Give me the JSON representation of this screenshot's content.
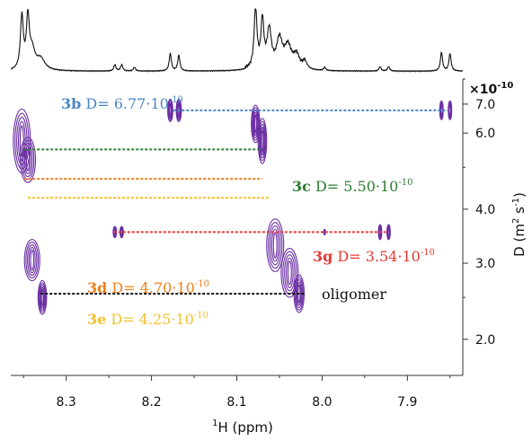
{
  "chart_data": {
    "type": "scatter",
    "title": "",
    "xlabel": "1H (ppm)",
    "xlabel_sup": "1",
    "xlabel_main": "H (ppm)",
    "ylabel": "D (m2 s-1)",
    "ylabel_parts": {
      "base": "D (m",
      "sup1": "2",
      "mid": "s",
      "sup2": "-1",
      "end": ")"
    },
    "y_multiplier": "×10",
    "y_multiplier_exp": "-10",
    "xlim": [
      8.365,
      7.835
    ],
    "x_reversed": true,
    "ylim": [
      1.65,
      8.0
    ],
    "y_scale": "log",
    "x_ticks": [
      "8.3",
      "8.2",
      "8.1",
      "8.0",
      "7.9"
    ],
    "x_tick_values": [
      8.3,
      8.2,
      8.1,
      8.0,
      7.9
    ],
    "y_ticks": [
      "7.0",
      "6.0",
      "4.0",
      "3.0",
      "2.0"
    ],
    "y_tick_values": [
      7.0,
      6.0,
      4.0,
      3.0,
      2.0
    ],
    "grid": false,
    "series": [
      {
        "name": "3b",
        "label_prefix": "3b",
        "label_text": " D= 6.77·10",
        "label_exp": "-10",
        "color": "#4a86c6",
        "D": 6.77,
        "x_from": 8.175,
        "x_to": 7.853
      },
      {
        "name": "3c",
        "label_prefix": "3c",
        "label_text": " D= 5.50·10",
        "label_exp": "-10",
        "color": "#2e7d32",
        "D": 5.5,
        "x_from": 8.35,
        "x_to": 8.072
      },
      {
        "name": "3d",
        "label_prefix": "3d",
        "label_text": " D= 4.70·10",
        "label_exp": "-10",
        "color": "#f07f1a",
        "D": 4.7,
        "x_from": 8.35,
        "x_to": 8.07
      },
      {
        "name": "3e",
        "label_prefix": "3e",
        "label_text": " D= 4.25·10",
        "label_exp": "-10",
        "color": "#f2c12e",
        "D": 4.25,
        "x_from": 8.345,
        "x_to": 8.062
      },
      {
        "name": "3g",
        "label_prefix": "3g",
        "label_text": " D= 3.54·10",
        "label_exp": "-10",
        "color": "#e53935",
        "D": 3.54,
        "x_from": 8.244,
        "x_to": 7.925
      },
      {
        "name": "oligomer",
        "label_text": "oligomer",
        "color": "#111111",
        "D": 2.55,
        "x_from": 8.33,
        "x_to": 8.02
      }
    ],
    "peaks": [
      {
        "x": 8.352,
        "D": 5.75,
        "w": 0.01,
        "h": 0.17
      },
      {
        "x": 8.345,
        "D": 5.2,
        "w": 0.009,
        "h": 0.12
      },
      {
        "x": 8.34,
        "D": 3.05,
        "w": 0.009,
        "h": 0.11
      },
      {
        "x": 8.328,
        "D": 2.5,
        "w": 0.005,
        "h": 0.09
      },
      {
        "x": 8.243,
        "D": 3.54,
        "w": 0.002,
        "h": 0.03
      },
      {
        "x": 8.235,
        "D": 3.54,
        "w": 0.002,
        "h": 0.03
      },
      {
        "x": 8.178,
        "D": 6.77,
        "w": 0.003,
        "h": 0.06
      },
      {
        "x": 8.168,
        "D": 6.77,
        "w": 0.003,
        "h": 0.06
      },
      {
        "x": 8.078,
        "D": 6.3,
        "w": 0.005,
        "h": 0.1
      },
      {
        "x": 8.07,
        "D": 5.75,
        "w": 0.005,
        "h": 0.12
      },
      {
        "x": 8.055,
        "D": 3.3,
        "w": 0.01,
        "h": 0.14
      },
      {
        "x": 8.038,
        "D": 2.85,
        "w": 0.01,
        "h": 0.13
      },
      {
        "x": 8.027,
        "D": 2.55,
        "w": 0.006,
        "h": 0.1
      },
      {
        "x": 7.997,
        "D": 3.54,
        "w": 0.001,
        "h": 0.015
      },
      {
        "x": 7.932,
        "D": 3.54,
        "w": 0.002,
        "h": 0.04
      },
      {
        "x": 7.922,
        "D": 3.54,
        "w": 0.002,
        "h": 0.04
      },
      {
        "x": 7.86,
        "D": 6.77,
        "w": 0.002,
        "h": 0.05
      },
      {
        "x": 7.85,
        "D": 6.77,
        "w": 0.002,
        "h": 0.05
      }
    ],
    "spectrum": [
      {
        "x": 8.352,
        "i": 0.85,
        "w": 0.002
      },
      {
        "x": 8.345,
        "i": 0.8,
        "w": 0.002
      },
      {
        "x": 8.34,
        "i": 0.3,
        "w": 0.004
      },
      {
        "x": 8.33,
        "i": 0.18,
        "w": 0.006
      },
      {
        "x": 8.243,
        "i": 0.1,
        "w": 0.0015
      },
      {
        "x": 8.235,
        "i": 0.1,
        "w": 0.0015
      },
      {
        "x": 8.22,
        "i": 0.06,
        "w": 0.0015
      },
      {
        "x": 8.178,
        "i": 0.28,
        "w": 0.0015
      },
      {
        "x": 8.168,
        "i": 0.25,
        "w": 0.0015
      },
      {
        "x": 8.078,
        "i": 0.95,
        "w": 0.002
      },
      {
        "x": 8.07,
        "i": 0.75,
        "w": 0.002
      },
      {
        "x": 8.062,
        "i": 0.6,
        "w": 0.003
      },
      {
        "x": 8.05,
        "i": 0.45,
        "w": 0.004
      },
      {
        "x": 8.04,
        "i": 0.35,
        "w": 0.005
      },
      {
        "x": 8.03,
        "i": 0.2,
        "w": 0.004
      },
      {
        "x": 8.02,
        "i": 0.12,
        "w": 0.003
      },
      {
        "x": 7.997,
        "i": 0.05,
        "w": 0.0015
      },
      {
        "x": 7.932,
        "i": 0.07,
        "w": 0.0015
      },
      {
        "x": 7.922,
        "i": 0.07,
        "w": 0.0015
      },
      {
        "x": 7.86,
        "i": 0.3,
        "w": 0.0015
      },
      {
        "x": 7.85,
        "i": 0.28,
        "w": 0.0015
      }
    ],
    "colors": {
      "contour": "#6b2fa3",
      "axis": "#333333",
      "spectrum": "#111111"
    }
  }
}
